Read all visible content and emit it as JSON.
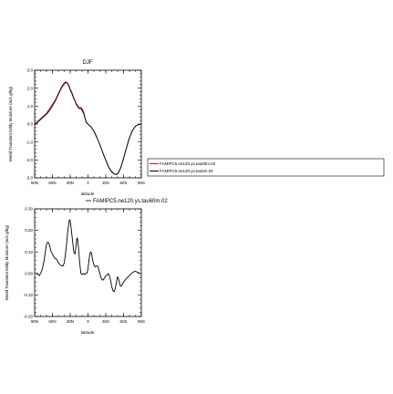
{
  "chart_data": [
    {
      "type": "line",
      "title": "DJF",
      "xlabel": "latitude",
      "ylabel": "Merid Transient Eddy Moisture (m/s g/kg)",
      "xlim": [
        90,
        -90
      ],
      "ylim": [
        -3.0,
        3.0
      ],
      "x_ticks": [
        "90N",
        "60N",
        "30N",
        "0",
        "30S",
        "60S",
        "90S"
      ],
      "x_tick_values": [
        90,
        60,
        30,
        0,
        -30,
        -60,
        -90
      ],
      "y_ticks": [
        "3.0",
        "2.0",
        "1.0",
        "0.0",
        "-1.0",
        "-2.0",
        "-3.0"
      ],
      "y_tick_values": [
        3,
        2,
        1,
        0,
        -1,
        -2,
        -3
      ],
      "grid": false,
      "legend": "right",
      "colors": {
        "series1": "#cc1111",
        "series2": "#000000"
      },
      "x": [
        90,
        85,
        80,
        75,
        70,
        65,
        60,
        55,
        50,
        45,
        40,
        37,
        35,
        32,
        30,
        27,
        25,
        22,
        20,
        17,
        15,
        12,
        10,
        7,
        5,
        3,
        0,
        -3,
        -5,
        -8,
        -10,
        -15,
        -20,
        -25,
        -30,
        -35,
        -40,
        -45,
        -48,
        -50,
        -52,
        -55,
        -60,
        -65,
        -70,
        -75,
        -80,
        -85,
        -90
      ],
      "series": [
        {
          "name": "FAMIPC5.ne120.ys.tau60m.02",
          "values": [
            0.0,
            0.15,
            0.3,
            0.45,
            0.6,
            0.85,
            1.1,
            1.35,
            1.7,
            2.05,
            2.3,
            2.35,
            2.3,
            2.15,
            1.95,
            1.75,
            1.55,
            1.3,
            1.1,
            0.95,
            0.85,
            0.85,
            0.75,
            0.55,
            0.3,
            0.08,
            0.0,
            -0.1,
            -0.15,
            -0.3,
            -0.4,
            -0.75,
            -1.15,
            -1.6,
            -2.0,
            -2.4,
            -2.65,
            -2.78,
            -2.8,
            -2.75,
            -2.65,
            -2.45,
            -1.9,
            -1.3,
            -0.75,
            -0.35,
            -0.12,
            -0.03,
            0.0
          ]
        },
        {
          "name": "FAMIPC5.ne120.ys.tau5m.02",
          "values": [
            -0.05,
            0.1,
            0.25,
            0.4,
            0.55,
            0.75,
            1.0,
            1.3,
            1.65,
            2.0,
            2.25,
            2.32,
            2.28,
            2.1,
            1.9,
            1.7,
            1.5,
            1.3,
            1.15,
            1.0,
            0.9,
            0.92,
            0.85,
            0.62,
            0.35,
            0.1,
            0.0,
            -0.1,
            -0.15,
            -0.3,
            -0.4,
            -0.75,
            -1.15,
            -1.6,
            -2.02,
            -2.42,
            -2.68,
            -2.8,
            -2.82,
            -2.77,
            -2.68,
            -2.47,
            -1.92,
            -1.32,
            -0.77,
            -0.36,
            -0.12,
            -0.03,
            0.0
          ]
        }
      ]
    },
    {
      "type": "line",
      "title": "",
      "xlabel": "latitude",
      "ylabel": "Merid Transient Eddy Moisture (m/s g/kg)",
      "xlim": [
        90,
        -90
      ],
      "ylim": [
        -0.2,
        0.3
      ],
      "x_ticks": [
        "90N",
        "60N",
        "30N",
        "0",
        "30S",
        "60S",
        "90S"
      ],
      "x_tick_values": [
        90,
        60,
        30,
        0,
        -30,
        -60,
        -90
      ],
      "y_ticks": [
        "0.30",
        "0.20",
        "0.10",
        "0.00",
        "-0.10",
        "-0.20"
      ],
      "y_tick_values": [
        0.3,
        0.2,
        0.1,
        0.0,
        -0.1,
        -0.2
      ],
      "grid": false,
      "legend": "top-right",
      "colors": {
        "series1": "#000000"
      },
      "x": [
        90,
        87,
        84,
        82,
        80,
        77,
        74,
        72,
        70,
        68,
        66,
        64,
        62,
        60,
        58,
        56,
        54,
        52,
        50,
        47,
        44,
        42,
        40,
        38,
        36,
        34,
        32,
        31,
        30,
        28,
        26,
        24,
        22,
        20,
        19,
        18,
        16,
        14,
        12,
        10,
        8,
        6,
        4,
        2,
        0,
        -2,
        -4,
        -6,
        -8,
        -10,
        -12,
        -14,
        -16,
        -18,
        -20,
        -22,
        -24,
        -26,
        -28,
        -30,
        -32,
        -34,
        -36,
        -38,
        -40,
        -42,
        -44,
        -46,
        -48,
        -50,
        -52,
        -54,
        -56,
        -58,
        -60,
        -63,
        -66,
        -70,
        -75,
        -80,
        -84,
        -87,
        -90
      ],
      "series": [
        {
          "name": "FAMIPC5.ne120.ys.tau60m.02",
          "values": [
            0.0,
            0.0,
            -0.005,
            -0.01,
            0.0,
            0.02,
            0.06,
            0.1,
            0.135,
            0.145,
            0.14,
            0.12,
            0.1,
            0.09,
            0.08,
            0.07,
            0.07,
            0.06,
            0.05,
            0.04,
            0.035,
            0.035,
            0.05,
            0.09,
            0.14,
            0.2,
            0.24,
            0.25,
            0.245,
            0.2,
            0.15,
            0.1,
            0.09,
            0.13,
            0.16,
            0.165,
            0.12,
            0.05,
            0.0,
            -0.005,
            0.0,
            -0.005,
            0.0,
            0.0,
            0.02,
            0.07,
            0.1,
            0.095,
            0.06,
            0.04,
            0.03,
            0.035,
            0.035,
            0.02,
            0.0,
            -0.02,
            -0.03,
            -0.03,
            -0.02,
            -0.01,
            -0.01,
            0.0,
            -0.01,
            -0.03,
            -0.06,
            -0.08,
            -0.085,
            -0.07,
            -0.04,
            -0.015,
            -0.03,
            -0.055,
            -0.06,
            -0.05,
            -0.04,
            -0.03,
            -0.02,
            -0.01,
            0.005,
            0.01,
            0.005,
            0.0,
            0.0
          ]
        }
      ]
    }
  ]
}
